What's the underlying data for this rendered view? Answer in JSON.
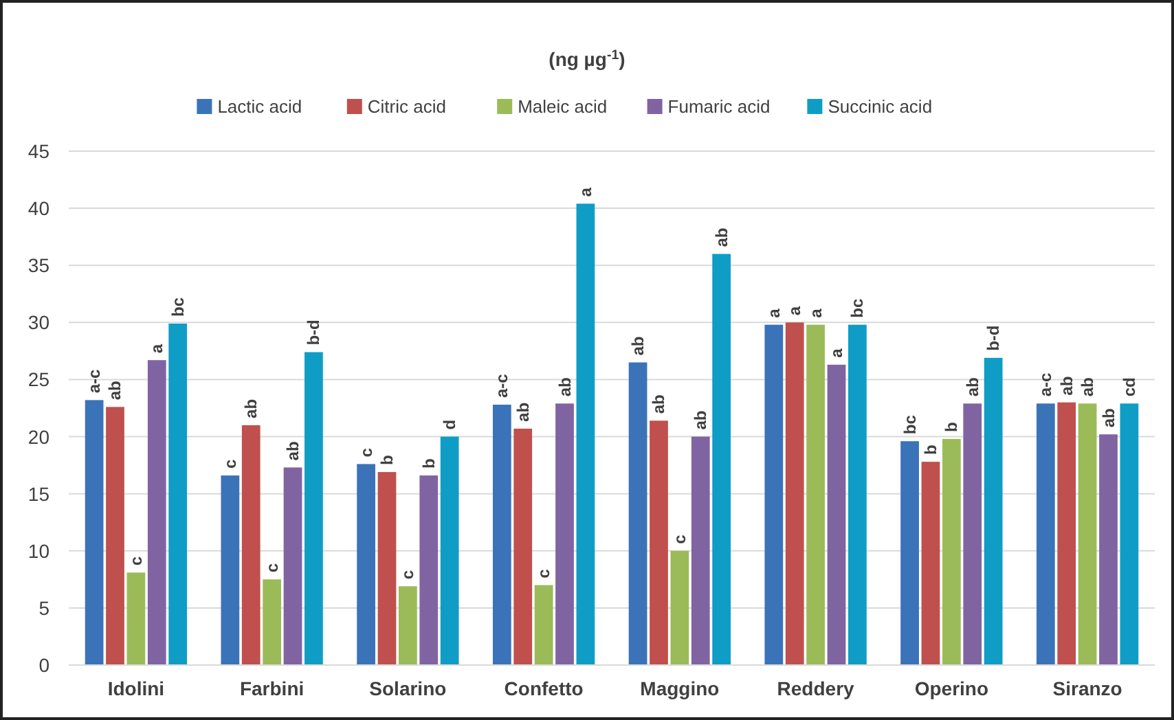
{
  "chart_data": {
    "type": "bar",
    "title": "(ng µg$^{-1}$)",
    "categories": [
      "Idolini",
      "Farbini",
      "Solarino",
      "Confetto",
      "Maggino",
      "Reddery",
      "Operino",
      "Siranzo"
    ],
    "series": [
      {
        "name": "Lactic acid",
        "color": "#3b73b9",
        "values": [
          23.2,
          16.6,
          17.6,
          22.8,
          26.5,
          29.8,
          19.6,
          22.9
        ],
        "value_labels": [
          "a-c",
          "c",
          "c",
          "a-c",
          "ab",
          "a",
          "bc",
          "a-c"
        ]
      },
      {
        "name": "Citric acid",
        "color": "#c0504d",
        "values": [
          22.6,
          21.0,
          16.9,
          20.7,
          21.4,
          30.0,
          17.8,
          23.0
        ],
        "value_labels": [
          "ab",
          "ab",
          "b",
          "ab",
          "ab",
          "a",
          "b",
          "ab"
        ]
      },
      {
        "name": "Maleic acid",
        "color": "#9bbb59",
        "values": [
          8.1,
          7.5,
          6.9,
          7.0,
          10.0,
          29.8,
          19.8,
          22.9
        ],
        "value_labels": [
          "c",
          "c",
          "c",
          "c",
          "c",
          "a",
          "b",
          "ab"
        ]
      },
      {
        "name": "Fumaric acid",
        "color": "#8064a2",
        "values": [
          26.7,
          17.3,
          16.6,
          22.9,
          20.0,
          26.3,
          22.9,
          20.2
        ],
        "value_labels": [
          "a",
          "ab",
          "b",
          "ab",
          "ab",
          "a",
          "ab",
          "ab"
        ]
      },
      {
        "name": "Succinic acid",
        "color": "#0f9dc6",
        "values": [
          29.9,
          27.4,
          20.0,
          40.4,
          36.0,
          29.8,
          26.9,
          22.9
        ],
        "value_labels": [
          "bc",
          "b-d",
          "d",
          "a",
          "ab",
          "bc",
          "b-d",
          "cd"
        ]
      }
    ],
    "ylim": [
      0,
      45
    ],
    "yticks": [
      0,
      5,
      10,
      15,
      20,
      25,
      30,
      35,
      40,
      45
    ],
    "grid": "y",
    "legend": "top"
  }
}
